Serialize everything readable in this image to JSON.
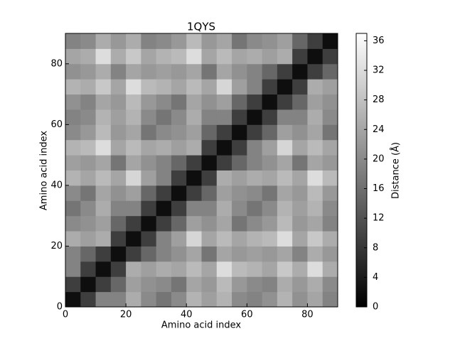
{
  "chart_data": {
    "type": "heatmap",
    "title": "1QYS",
    "x_label": "Amino acid index",
    "y_label": "Amino acid index",
    "colorbar_label": "Distance (Å)",
    "cmap": "gray",
    "x_bins": [
      0,
      5,
      10,
      15,
      20,
      25,
      30,
      35,
      40,
      45,
      50,
      55,
      60,
      65,
      70,
      75,
      80,
      85,
      90
    ],
    "y_bins": [
      0,
      5,
      10,
      15,
      20,
      25,
      30,
      35,
      40,
      45,
      50,
      55,
      60,
      65,
      70,
      75,
      80,
      85,
      90
    ],
    "xlim": [
      0,
      90
    ],
    "ylim": [
      0,
      90
    ],
    "xticks": [
      0,
      20,
      40,
      60,
      80
    ],
    "yticks": [
      0,
      20,
      40,
      60,
      80
    ],
    "clim": [
      0,
      37
    ],
    "cticks": [
      0,
      4,
      8,
      12,
      16,
      20,
      24,
      28,
      32,
      36
    ],
    "values": [
      [
        2,
        9,
        19,
        19,
        25,
        20,
        17,
        20,
        26,
        23,
        26,
        20,
        19,
        21,
        26,
        21,
        24,
        19
      ],
      [
        9,
        2,
        9,
        15,
        23,
        21,
        20,
        17,
        24,
        22,
        27,
        22,
        20,
        19,
        25,
        22,
        25,
        20
      ],
      [
        19,
        9,
        2,
        9,
        25,
        23,
        25,
        24,
        27,
        24,
        32,
        27,
        26,
        24,
        29,
        25,
        32,
        25
      ],
      [
        19,
        15,
        9,
        2,
        9,
        15,
        19,
        21,
        24,
        17,
        24,
        22,
        23,
        22,
        24,
        19,
        25,
        22
      ],
      [
        25,
        23,
        25,
        9,
        2,
        9,
        19,
        23,
        31,
        24,
        27,
        24,
        26,
        27,
        32,
        24,
        29,
        25
      ],
      [
        20,
        21,
        23,
        15,
        9,
        2,
        9,
        15,
        23,
        21,
        24,
        17,
        20,
        22,
        27,
        22,
        24,
        19
      ],
      [
        17,
        20,
        25,
        19,
        19,
        9,
        2,
        9,
        19,
        19,
        25,
        20,
        17,
        20,
        26,
        23,
        26,
        20
      ],
      [
        20,
        17,
        24,
        21,
        23,
        15,
        9,
        2,
        9,
        15,
        23,
        21,
        20,
        17,
        24,
        22,
        27,
        22
      ],
      [
        26,
        24,
        27,
        24,
        31,
        23,
        19,
        9,
        2,
        9,
        25,
        23,
        25,
        24,
        27,
        24,
        32,
        27
      ],
      [
        23,
        22,
        24,
        17,
        24,
        21,
        19,
        15,
        9,
        2,
        9,
        15,
        19,
        21,
        24,
        17,
        24,
        22
      ],
      [
        26,
        27,
        32,
        24,
        27,
        24,
        25,
        23,
        25,
        9,
        2,
        9,
        19,
        23,
        31,
        24,
        27,
        24
      ],
      [
        20,
        22,
        27,
        22,
        24,
        17,
        20,
        21,
        23,
        15,
        9,
        2,
        9,
        15,
        23,
        21,
        24,
        17
      ],
      [
        19,
        20,
        26,
        23,
        26,
        20,
        17,
        20,
        25,
        19,
        19,
        9,
        2,
        9,
        19,
        19,
        25,
        20
      ],
      [
        21,
        19,
        24,
        22,
        27,
        22,
        20,
        17,
        24,
        21,
        23,
        15,
        9,
        2,
        9,
        15,
        23,
        21
      ],
      [
        26,
        25,
        29,
        24,
        32,
        27,
        26,
        24,
        27,
        24,
        31,
        23,
        19,
        9,
        2,
        9,
        25,
        23
      ],
      [
        21,
        22,
        25,
        19,
        24,
        22,
        23,
        22,
        24,
        17,
        24,
        21,
        19,
        15,
        9,
        2,
        9,
        15
      ],
      [
        24,
        25,
        32,
        25,
        29,
        24,
        26,
        27,
        32,
        24,
        27,
        24,
        25,
        23,
        25,
        9,
        2,
        9
      ],
      [
        19,
        20,
        25,
        22,
        25,
        19,
        20,
        22,
        27,
        22,
        24,
        17,
        20,
        21,
        23,
        15,
        9,
        2
      ]
    ]
  }
}
